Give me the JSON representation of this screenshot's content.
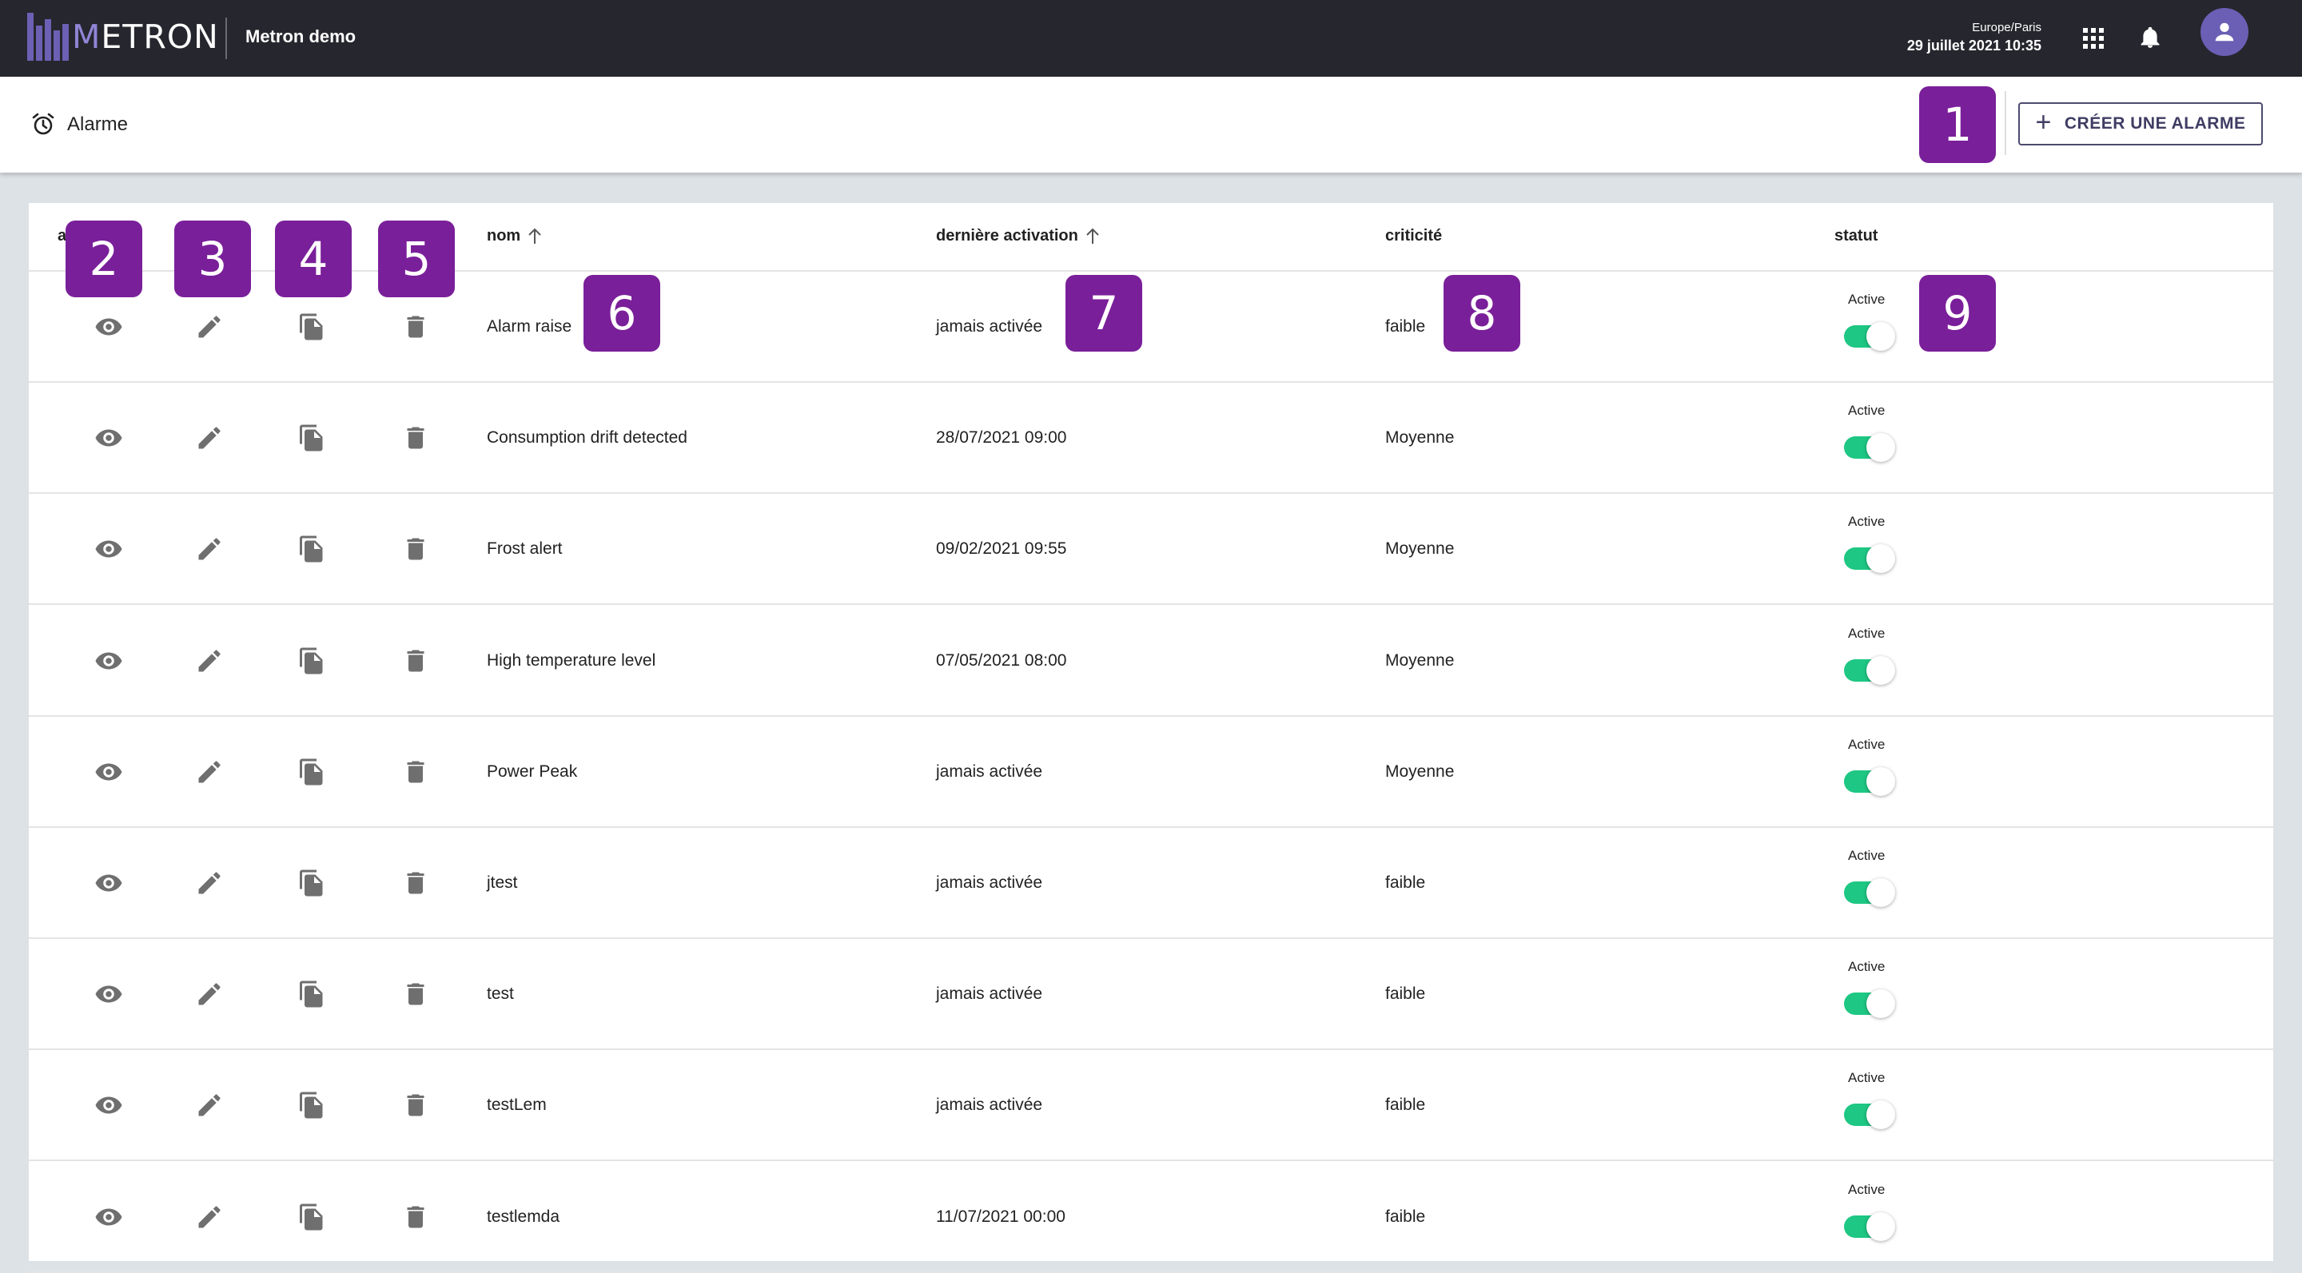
{
  "topbar": {
    "logo_text_m": "M",
    "logo_text_rest": "ETRON",
    "app_name": "Metron demo",
    "timezone": "Europe/Paris",
    "datetime": "29 juillet 2021 10:35",
    "icons": [
      "apps-grid-icon",
      "bell-icon",
      "user-icon"
    ]
  },
  "page": {
    "title": "Alarme",
    "create_button": "CRÉER UNE ALARME"
  },
  "table": {
    "columns": {
      "actions": "a",
      "name": "nom",
      "last_activation": "dernière activation",
      "criticality": "criticité",
      "status": "statut"
    },
    "rows": [
      {
        "name": "Alarm raise",
        "last_activation": "jamais activée",
        "criticality": "faible",
        "status": "Active",
        "enabled": true
      },
      {
        "name": "Consumption drift detected",
        "last_activation": "28/07/2021 09:00",
        "criticality": "Moyenne",
        "status": "Active",
        "enabled": true
      },
      {
        "name": "Frost alert",
        "last_activation": "09/02/2021 09:55",
        "criticality": "Moyenne",
        "status": "Active",
        "enabled": true
      },
      {
        "name": "High temperature level",
        "last_activation": "07/05/2021 08:00",
        "criticality": "Moyenne",
        "status": "Active",
        "enabled": true
      },
      {
        "name": "Power Peak",
        "last_activation": "jamais activée",
        "criticality": "Moyenne",
        "status": "Active",
        "enabled": true
      },
      {
        "name": "jtest",
        "last_activation": "jamais activée",
        "criticality": "faible",
        "status": "Active",
        "enabled": true
      },
      {
        "name": "test",
        "last_activation": "jamais activée",
        "criticality": "faible",
        "status": "Active",
        "enabled": true
      },
      {
        "name": "testLem",
        "last_activation": "jamais activée",
        "criticality": "faible",
        "status": "Active",
        "enabled": true
      },
      {
        "name": "testlemda",
        "last_activation": "11/07/2021 00:00",
        "criticality": "faible",
        "status": "Active",
        "enabled": true
      }
    ]
  },
  "callouts": [
    "1",
    "2",
    "3",
    "4",
    "5",
    "6",
    "7",
    "8",
    "9"
  ],
  "colors": {
    "topbar": "#26262e",
    "brand": "#6b60b3",
    "toggle_on": "#1ec783",
    "callout": "#7a1f9a"
  }
}
